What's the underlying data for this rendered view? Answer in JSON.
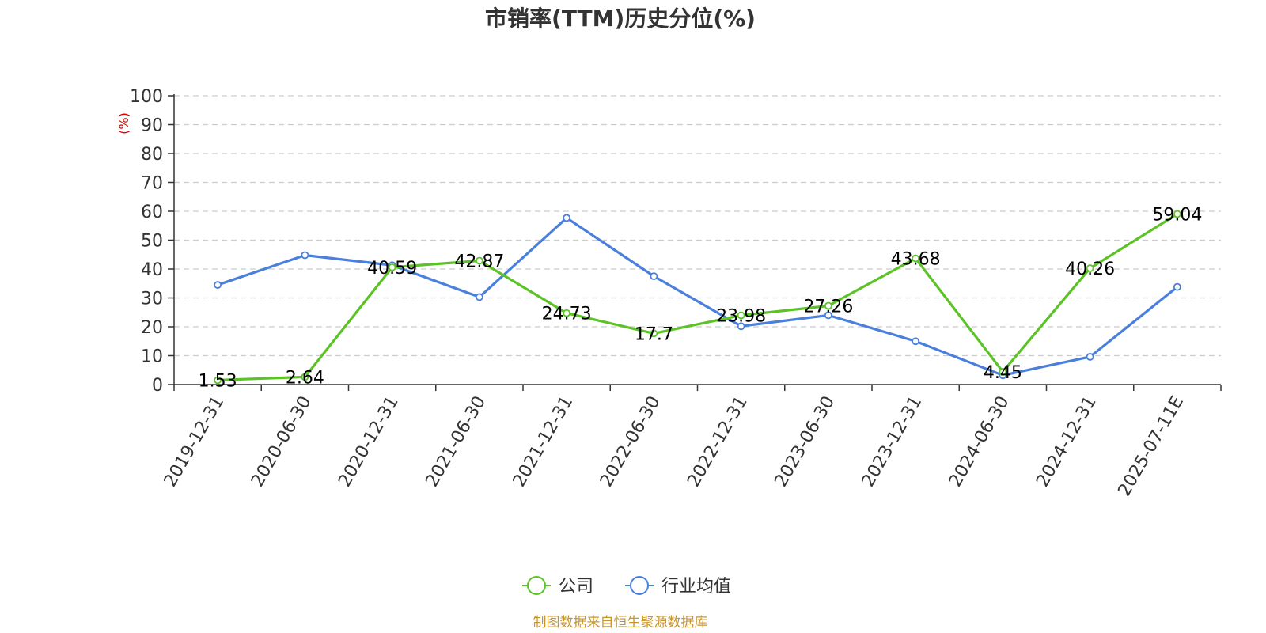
{
  "chart_data": {
    "type": "line",
    "title": "市销率(TTM)历史分位(%)",
    "ylabel": "(%)",
    "xlabel": "",
    "ylim": [
      0,
      100
    ],
    "yticks": [
      0,
      10,
      20,
      30,
      40,
      50,
      60,
      70,
      80,
      90,
      100
    ],
    "categories": [
      "2019-12-31",
      "2020-06-30",
      "2020-12-31",
      "2021-06-30",
      "2021-12-31",
      "2022-06-30",
      "2022-12-31",
      "2023-06-30",
      "2023-12-31",
      "2024-06-30",
      "2024-12-31",
      "2025-07-11E"
    ],
    "grid": true,
    "legend_position": "bottom-center",
    "series": [
      {
        "name": "公司",
        "color": "#5cc326",
        "values": [
          1.53,
          2.64,
          40.59,
          42.87,
          24.73,
          17.7,
          23.98,
          27.26,
          43.68,
          4.45,
          40.26,
          59.04
        ],
        "labels": [
          "1.53",
          "2.64",
          "40.59",
          "42.87",
          "24.73",
          "17.7",
          "23.98",
          "27.26",
          "43.68",
          "4.45",
          "40.26",
          "59.04"
        ]
      },
      {
        "name": "行业均值",
        "color": "#4a80dc",
        "values": [
          34.5,
          44.8,
          41.3,
          30.3,
          57.7,
          37.5,
          20.2,
          24.0,
          15.0,
          3.2,
          9.6,
          33.8
        ]
      }
    ],
    "source": "制图数据来自恒生聚源数据库",
    "source_color": "#c8952c",
    "ylabel_color": "#e00000"
  }
}
